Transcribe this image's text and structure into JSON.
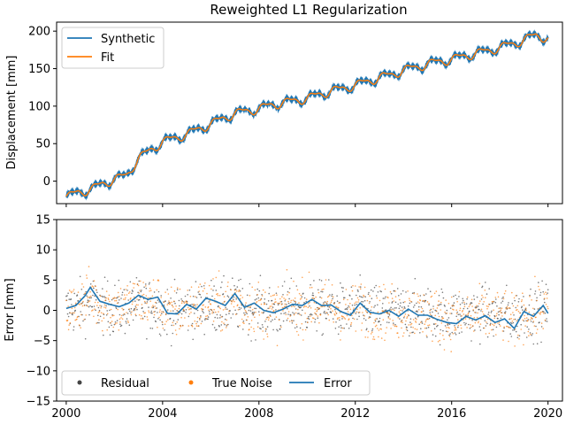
{
  "chart_data": [
    {
      "type": "line",
      "title": "Reweighted L1 Regularization",
      "xlabel": "",
      "ylabel": "Displacement [mm]",
      "xlim": [
        1999.6,
        2020.6
      ],
      "ylim": [
        -30,
        212
      ],
      "xticks": [
        2000,
        2004,
        2008,
        2012,
        2016,
        2020
      ],
      "xtick_labels_visible": false,
      "yticks": [
        0,
        50,
        100,
        150,
        200
      ],
      "ytick_labels": [
        "0",
        "50",
        "100",
        "150",
        "200"
      ],
      "legend": {
        "placement": "upper-left",
        "entries": [
          "Synthetic",
          "Fit"
        ]
      },
      "grid": false,
      "series": [
        {
          "name": "Synthetic",
          "color": "#1f77b4",
          "x": [
            2000.0,
            2000.5,
            2001.0,
            2001.5,
            2002.0,
            2002.5,
            2003.0,
            2003.5,
            2004.0,
            2004.5,
            2005.0,
            2005.5,
            2006.0,
            2006.5,
            2007.0,
            2007.5,
            2008.0,
            2008.5,
            2009.0,
            2009.5,
            2010.0,
            2010.5,
            2011.0,
            2011.5,
            2012.0,
            2012.5,
            2013.0,
            2013.5,
            2014.0,
            2014.5,
            2015.0,
            2015.5,
            2016.0,
            2016.5,
            2017.0,
            2017.5,
            2018.0,
            2018.5,
            2019.0,
            2019.5,
            2020.0
          ],
          "y": [
            -22,
            -14,
            -12,
            -3,
            2,
            8,
            30,
            42,
            52,
            58,
            62,
            70,
            76,
            84,
            90,
            94,
            96,
            102,
            104,
            108,
            110,
            116,
            120,
            124,
            128,
            133,
            138,
            142,
            148,
            152,
            156,
            160,
            162,
            167,
            170,
            174,
            178,
            183,
            188,
            195,
            190
          ]
        },
        {
          "name": "Fit",
          "color": "#ff7f0e",
          "x": [
            2000.0,
            2000.5,
            2001.0,
            2001.5,
            2002.0,
            2002.5,
            2003.0,
            2003.5,
            2004.0,
            2004.5,
            2005.0,
            2005.5,
            2006.0,
            2006.5,
            2007.0,
            2007.5,
            2008.0,
            2008.5,
            2009.0,
            2009.5,
            2010.0,
            2010.5,
            2011.0,
            2011.5,
            2012.0,
            2012.5,
            2013.0,
            2013.5,
            2014.0,
            2014.5,
            2015.0,
            2015.5,
            2016.0,
            2016.5,
            2017.0,
            2017.5,
            2018.0,
            2018.5,
            2019.0,
            2019.5,
            2020.0
          ],
          "y": [
            -22,
            -14,
            -12,
            -3,
            2,
            8,
            30,
            42,
            52,
            58,
            62,
            70,
            76,
            84,
            90,
            94,
            96,
            102,
            104,
            108,
            110,
            116,
            120,
            124,
            128,
            133,
            138,
            142,
            148,
            152,
            156,
            160,
            162,
            167,
            170,
            174,
            178,
            183,
            188,
            195,
            190
          ]
        }
      ]
    },
    {
      "type": "scatter",
      "title": "",
      "xlabel": "",
      "ylabel": "Error [mm]",
      "xlim": [
        1999.6,
        2020.6
      ],
      "ylim": [
        -15,
        15
      ],
      "xticks": [
        2000,
        2004,
        2008,
        2012,
        2016,
        2020
      ],
      "xtick_labels": [
        "2000",
        "2004",
        "2008",
        "2012",
        "2016",
        "2020"
      ],
      "yticks": [
        -15,
        -10,
        -5,
        0,
        5,
        10,
        15
      ],
      "ytick_labels": [
        "−15",
        "−10",
        "−5",
        "0",
        "5",
        "10",
        "15"
      ],
      "legend": {
        "placement": "lower-left",
        "entries": [
          "Residual",
          "True Noise",
          "Error"
        ]
      },
      "grid": false,
      "scatter_spread": {
        "Residual": 2.2,
        "True Noise": 2.2
      },
      "series": [
        {
          "name": "Residual",
          "kind": "scatter",
          "color": "#444444"
        },
        {
          "name": "True Noise",
          "kind": "scatter",
          "color": "#ff7f0e"
        },
        {
          "name": "Error",
          "kind": "line",
          "color": "#1f77b4",
          "x": [
            2000.0,
            2000.4,
            2000.8,
            2001.0,
            2001.4,
            2001.8,
            2002.2,
            2002.6,
            2003.0,
            2003.4,
            2003.8,
            2004.2,
            2004.6,
            2005.0,
            2005.4,
            2005.8,
            2006.2,
            2006.6,
            2007.0,
            2007.4,
            2007.8,
            2008.2,
            2008.6,
            2009.0,
            2009.4,
            2009.8,
            2010.2,
            2010.6,
            2011.0,
            2011.4,
            2011.8,
            2012.2,
            2012.6,
            2013.0,
            2013.4,
            2013.8,
            2014.2,
            2014.6,
            2015.0,
            2015.4,
            2015.8,
            2016.2,
            2016.6,
            2017.0,
            2017.4,
            2017.8,
            2018.2,
            2018.6,
            2019.0,
            2019.4,
            2019.8,
            2020.0
          ],
          "y": [
            0.3,
            0.8,
            2.5,
            3.8,
            1.5,
            1.0,
            0.6,
            1.2,
            2.5,
            1.8,
            2.2,
            -0.5,
            -0.6,
            1.0,
            0.2,
            2.0,
            1.5,
            0.8,
            2.8,
            0.5,
            1.2,
            0.0,
            -0.4,
            0.2,
            1.0,
            0.8,
            1.8,
            0.8,
            0.9,
            -0.2,
            -0.8,
            1.2,
            -0.3,
            -0.6,
            0.0,
            -1.0,
            0.2,
            -0.8,
            -0.8,
            -1.5,
            -2.0,
            -2.2,
            -1.0,
            -1.6,
            -0.9,
            -2.0,
            -1.4,
            -3.0,
            -0.2,
            -1.0,
            0.8,
            -0.5
          ]
        }
      ]
    }
  ]
}
